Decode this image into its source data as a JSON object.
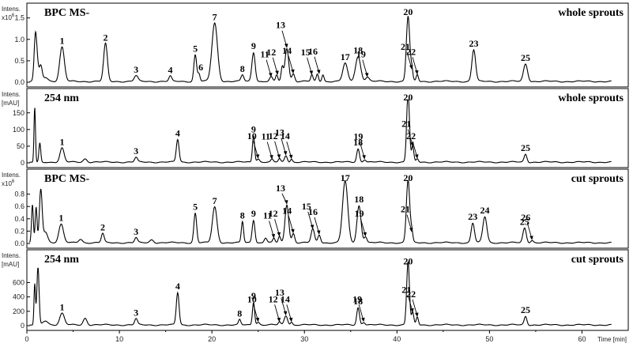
{
  "chart_data": {
    "type": "line",
    "x_axis": {
      "label": "Time [min]",
      "range": [
        0,
        65
      ],
      "ticks": [
        "0",
        "10",
        "20",
        "30",
        "40",
        "50",
        "60"
      ]
    },
    "panels": [
      {
        "id": "p1",
        "y_unit_top": "Intens.",
        "y_unit_bottom": "x10",
        "y_unit_exp": "6",
        "left_title": "BPC MS-",
        "right_title": "whole sprouts",
        "ylim": [
          0,
          1.55
        ],
        "yticks": [
          "0.0",
          "0.5",
          "1.0",
          "1.5"
        ],
        "peaks": [
          {
            "t": 0.9,
            "h": 0.45,
            "w": 0.12
          },
          {
            "t": 1.0,
            "h": 0.78,
            "w": 0.18
          },
          {
            "t": 1.5,
            "h": 0.35,
            "w": 0.15
          },
          {
            "t": 2.0,
            "h": 0.1,
            "w": 0.3
          },
          {
            "t": 3.8,
            "h": 0.8,
            "w": 0.25
          },
          {
            "t": 8.5,
            "h": 0.88,
            "w": 0.2
          },
          {
            "t": 11.8,
            "h": 0.13,
            "w": 0.2
          },
          {
            "t": 15.5,
            "h": 0.12,
            "w": 0.15
          },
          {
            "t": 18.2,
            "h": 0.62,
            "w": 0.15
          },
          {
            "t": 18.6,
            "h": 0.18,
            "w": 0.12
          },
          {
            "t": 20.3,
            "h": 1.36,
            "w": 0.3
          },
          {
            "t": 23.3,
            "h": 0.15,
            "w": 0.15
          },
          {
            "t": 24.5,
            "h": 0.68,
            "w": 0.18
          },
          {
            "t": 26.4,
            "h": 0.1,
            "w": 0.15
          },
          {
            "t": 27.0,
            "h": 0.15,
            "w": 0.12
          },
          {
            "t": 27.6,
            "h": 0.32,
            "w": 0.12
          },
          {
            "t": 28.1,
            "h": 0.78,
            "w": 0.2
          },
          {
            "t": 28.8,
            "h": 0.18,
            "w": 0.15
          },
          {
            "t": 30.8,
            "h": 0.15,
            "w": 0.12
          },
          {
            "t": 31.4,
            "h": 0.17,
            "w": 0.12
          },
          {
            "t": 32.0,
            "h": 0.16,
            "w": 0.12
          },
          {
            "t": 34.4,
            "h": 0.42,
            "w": 0.25
          },
          {
            "t": 35.8,
            "h": 0.58,
            "w": 0.28
          },
          {
            "t": 36.8,
            "h": 0.1,
            "w": 0.2
          },
          {
            "t": 41.2,
            "h": 1.52,
            "w": 0.18
          },
          {
            "t": 41.6,
            "h": 0.28,
            "w": 0.12
          },
          {
            "t": 42.2,
            "h": 0.16,
            "w": 0.12
          },
          {
            "t": 48.3,
            "h": 0.74,
            "w": 0.2
          },
          {
            "t": 53.9,
            "h": 0.41,
            "w": 0.22
          }
        ],
        "labels": [
          {
            "n": "1",
            "t": 3.8,
            "h": 0.8
          },
          {
            "n": "2",
            "t": 8.5,
            "h": 0.88
          },
          {
            "n": "3",
            "t": 11.8,
            "h": 0.13
          },
          {
            "n": "4",
            "t": 15.5,
            "h": 0.12
          },
          {
            "n": "5",
            "t": 18.2,
            "h": 0.62
          },
          {
            "n": "6",
            "t": 18.8,
            "h": 0.18
          },
          {
            "n": "7",
            "t": 20.3,
            "h": 1.36
          },
          {
            "n": "8",
            "t": 23.3,
            "h": 0.15
          },
          {
            "n": "9",
            "t": 24.5,
            "h": 0.68
          },
          {
            "n": "11",
            "t": 26.4,
            "h": 0.1,
            "arrow": true
          },
          {
            "n": "12",
            "t": 27.1,
            "h": 0.15,
            "arrow": true
          },
          {
            "n": "13",
            "t": 28.1,
            "h": 0.78,
            "arrow": true
          },
          {
            "n": "14",
            "t": 28.8,
            "h": 0.18,
            "arrow": true
          },
          {
            "n": "15",
            "t": 30.8,
            "h": 0.15,
            "arrow": true
          },
          {
            "n": "16",
            "t": 31.6,
            "h": 0.17,
            "arrow": true
          },
          {
            "n": "17",
            "t": 34.4,
            "h": 0.42
          },
          {
            "n": "18",
            "t": 35.8,
            "h": 0.58
          },
          {
            "n": "19",
            "t": 36.8,
            "h": 0.1,
            "arrow": true
          },
          {
            "n": "20",
            "t": 41.2,
            "h": 1.52
          },
          {
            "n": "21",
            "t": 41.6,
            "h": 0.28,
            "arrow": true
          },
          {
            "n": "22",
            "t": 42.2,
            "h": 0.16,
            "arrow": true
          },
          {
            "n": "23",
            "t": 48.3,
            "h": 0.74
          },
          {
            "n": "25",
            "t": 53.9,
            "h": 0.41
          }
        ]
      },
      {
        "id": "p2",
        "y_unit_top": "Intens.",
        "y_unit_bottom": "[mAU]",
        "left_title": "254 nm",
        "right_title": "whole sprouts",
        "ylim": [
          0,
          185
        ],
        "yticks": [
          "0",
          "50",
          "100",
          "150"
        ],
        "peaks": [
          {
            "t": 0.85,
            "h": 165,
            "w": 0.08
          },
          {
            "t": 1.4,
            "h": 58,
            "w": 0.1
          },
          {
            "t": 3.8,
            "h": 42,
            "w": 0.22
          },
          {
            "t": 6.3,
            "h": 10,
            "w": 0.2
          },
          {
            "t": 11.8,
            "h": 14,
            "w": 0.15
          },
          {
            "t": 16.3,
            "h": 68,
            "w": 0.15
          },
          {
            "t": 24.5,
            "h": 80,
            "w": 0.12
          },
          {
            "t": 25.0,
            "h": 10,
            "w": 0.15
          },
          {
            "t": 26.5,
            "h": 8,
            "w": 0.12
          },
          {
            "t": 27.3,
            "h": 10,
            "w": 0.12
          },
          {
            "t": 28.0,
            "h": 20,
            "w": 0.15
          },
          {
            "t": 28.6,
            "h": 9,
            "w": 0.12
          },
          {
            "t": 35.8,
            "h": 40,
            "w": 0.15
          },
          {
            "t": 36.5,
            "h": 8,
            "w": 0.15
          },
          {
            "t": 41.2,
            "h": 210,
            "w": 0.15
          },
          {
            "t": 41.7,
            "h": 46,
            "w": 0.12
          },
          {
            "t": 42.2,
            "h": 10,
            "w": 0.12
          },
          {
            "t": 53.9,
            "h": 24,
            "w": 0.15
          }
        ],
        "labels": [
          {
            "n": "1",
            "t": 3.8,
            "h": 42
          },
          {
            "n": "3",
            "t": 11.8,
            "h": 14
          },
          {
            "n": "4",
            "t": 16.3,
            "h": 68
          },
          {
            "n": "9",
            "t": 24.5,
            "h": 80
          },
          {
            "n": "10",
            "t": 25.0,
            "h": 10,
            "arrow": true
          },
          {
            "n": "11",
            "t": 26.5,
            "h": 8,
            "arrow": true
          },
          {
            "n": "12",
            "t": 27.3,
            "h": 10,
            "arrow": true
          },
          {
            "n": "13",
            "t": 28.0,
            "h": 20,
            "arrow": true
          },
          {
            "n": "14",
            "t": 28.6,
            "h": 9,
            "arrow": true
          },
          {
            "n": "18",
            "t": 35.8,
            "h": 40
          },
          {
            "n": "19",
            "t": 36.5,
            "h": 8,
            "arrow": true
          },
          {
            "n": "20",
            "t": 41.2,
            "h": 178
          },
          {
            "n": "21",
            "t": 41.7,
            "h": 46,
            "arrow": true
          },
          {
            "n": "22",
            "t": 42.2,
            "h": 10,
            "arrow": true
          },
          {
            "n": "25",
            "t": 53.9,
            "h": 24
          }
        ]
      },
      {
        "id": "p3",
        "y_unit_top": "Intens.",
        "y_unit_bottom": "x10",
        "y_unit_exp": "6",
        "left_title": "BPC MS-",
        "right_title": "cut sprouts",
        "ylim": [
          0,
          1.0
        ],
        "yticks": [
          "0.0",
          "0.2",
          "0.4",
          "0.6",
          "0.8"
        ],
        "peaks": [
          {
            "t": 0.6,
            "h": 0.62,
            "w": 0.1
          },
          {
            "t": 1.0,
            "h": 0.58,
            "w": 0.1
          },
          {
            "t": 1.5,
            "h": 0.85,
            "w": 0.15
          },
          {
            "t": 2.0,
            "h": 0.18,
            "w": 0.25
          },
          {
            "t": 3.7,
            "h": 0.3,
            "w": 0.25
          },
          {
            "t": 5.8,
            "h": 0.06,
            "w": 0.2
          },
          {
            "t": 8.2,
            "h": 0.15,
            "w": 0.15
          },
          {
            "t": 11.8,
            "h": 0.08,
            "w": 0.15
          },
          {
            "t": 13.5,
            "h": 0.05,
            "w": 0.2
          },
          {
            "t": 18.2,
            "h": 0.48,
            "w": 0.15
          },
          {
            "t": 20.3,
            "h": 0.58,
            "w": 0.25
          },
          {
            "t": 23.3,
            "h": 0.34,
            "w": 0.12
          },
          {
            "t": 24.5,
            "h": 0.37,
            "w": 0.15
          },
          {
            "t": 25.8,
            "h": 0.08,
            "w": 0.15
          },
          {
            "t": 26.7,
            "h": 0.07,
            "w": 0.12
          },
          {
            "t": 27.3,
            "h": 0.1,
            "w": 0.12
          },
          {
            "t": 28.1,
            "h": 0.62,
            "w": 0.2
          },
          {
            "t": 28.8,
            "h": 0.15,
            "w": 0.15
          },
          {
            "t": 30.9,
            "h": 0.22,
            "w": 0.18
          },
          {
            "t": 31.6,
            "h": 0.13,
            "w": 0.15
          },
          {
            "t": 34.4,
            "h": 1.0,
            "w": 0.28
          },
          {
            "t": 35.9,
            "h": 0.6,
            "w": 0.22
          },
          {
            "t": 36.6,
            "h": 0.1,
            "w": 0.15
          },
          {
            "t": 41.2,
            "h": 1.02,
            "w": 0.18
          },
          {
            "t": 41.6,
            "h": 0.17,
            "w": 0.12
          },
          {
            "t": 48.2,
            "h": 0.32,
            "w": 0.18
          },
          {
            "t": 49.5,
            "h": 0.42,
            "w": 0.22
          },
          {
            "t": 53.8,
            "h": 0.24,
            "w": 0.18
          },
          {
            "t": 54.6,
            "h": 0.04,
            "w": 0.15
          }
        ],
        "labels": [
          {
            "n": "1",
            "t": 3.7,
            "h": 0.3
          },
          {
            "n": "2",
            "t": 8.2,
            "h": 0.15
          },
          {
            "n": "3",
            "t": 11.8,
            "h": 0.08
          },
          {
            "n": "5",
            "t": 18.2,
            "h": 0.48
          },
          {
            "n": "7",
            "t": 20.3,
            "h": 0.58
          },
          {
            "n": "8",
            "t": 23.3,
            "h": 0.34
          },
          {
            "n": "9",
            "t": 24.5,
            "h": 0.37
          },
          {
            "n": "11",
            "t": 26.7,
            "h": 0.07,
            "arrow": true
          },
          {
            "n": "12",
            "t": 27.3,
            "h": 0.1,
            "arrow": true
          },
          {
            "n": "13",
            "t": 28.1,
            "h": 0.62,
            "arrow": true
          },
          {
            "n": "14",
            "t": 28.8,
            "h": 0.15,
            "arrow": true
          },
          {
            "n": "15",
            "t": 30.9,
            "h": 0.22,
            "arrow": true
          },
          {
            "n": "16",
            "t": 31.6,
            "h": 0.13,
            "arrow": true
          },
          {
            "n": "17",
            "t": 34.4,
            "h": 1.0
          },
          {
            "n": "18",
            "t": 35.9,
            "h": 0.6
          },
          {
            "n": "19",
            "t": 36.6,
            "h": 0.1,
            "arrow": true
          },
          {
            "n": "20",
            "t": 41.2,
            "h": 0.95
          },
          {
            "n": "21",
            "t": 41.6,
            "h": 0.17,
            "arrow": true
          },
          {
            "n": "23",
            "t": 48.2,
            "h": 0.32
          },
          {
            "n": "24",
            "t": 49.5,
            "h": 0.42
          },
          {
            "n": "25",
            "t": 53.8,
            "h": 0.24
          },
          {
            "n": "26",
            "t": 54.6,
            "h": 0.04,
            "arrow": true
          }
        ]
      },
      {
        "id": "p4",
        "y_unit_top": "Intens.",
        "y_unit_bottom": "[mAU]",
        "left_title": "254 nm",
        "right_title": "cut sprouts",
        "ylim": [
          0,
          880
        ],
        "yticks": [
          "0",
          "200",
          "400",
          "600"
        ],
        "peaks": [
          {
            "t": 0.85,
            "h": 570,
            "w": 0.08
          },
          {
            "t": 1.2,
            "h": 800,
            "w": 0.12
          },
          {
            "t": 2.0,
            "h": 60,
            "w": 0.3
          },
          {
            "t": 3.8,
            "h": 160,
            "w": 0.25
          },
          {
            "t": 6.3,
            "h": 95,
            "w": 0.2
          },
          {
            "t": 11.8,
            "h": 85,
            "w": 0.15
          },
          {
            "t": 16.3,
            "h": 450,
            "w": 0.15
          },
          {
            "t": 23.0,
            "h": 70,
            "w": 0.12
          },
          {
            "t": 24.5,
            "h": 320,
            "w": 0.12
          },
          {
            "t": 25.0,
            "h": 40,
            "w": 0.15
          },
          {
            "t": 27.3,
            "h": 40,
            "w": 0.12
          },
          {
            "t": 28.0,
            "h": 130,
            "w": 0.18
          },
          {
            "t": 28.6,
            "h": 40,
            "w": 0.12
          },
          {
            "t": 35.8,
            "h": 240,
            "w": 0.15
          },
          {
            "t": 36.4,
            "h": 40,
            "w": 0.15
          },
          {
            "t": 41.2,
            "h": 880,
            "w": 0.15
          },
          {
            "t": 41.7,
            "h": 170,
            "w": 0.12
          },
          {
            "t": 42.2,
            "h": 110,
            "w": 0.12
          },
          {
            "t": 53.9,
            "h": 120,
            "w": 0.15
          }
        ],
        "labels": [
          {
            "n": "1",
            "t": 3.8,
            "h": 160
          },
          {
            "n": "3",
            "t": 11.8,
            "h": 85
          },
          {
            "n": "4",
            "t": 16.3,
            "h": 450
          },
          {
            "n": "8",
            "t": 23.0,
            "h": 70
          },
          {
            "n": "9",
            "t": 24.5,
            "h": 320
          },
          {
            "n": "10",
            "t": 25.0,
            "h": 40,
            "arrow": true
          },
          {
            "n": "12",
            "t": 27.3,
            "h": 40,
            "arrow": true
          },
          {
            "n": "13",
            "t": 28.0,
            "h": 130,
            "arrow": true
          },
          {
            "n": "14",
            "t": 28.6,
            "h": 40,
            "arrow": true
          },
          {
            "n": "18",
            "t": 35.8,
            "h": 240
          },
          {
            "n": "19",
            "t": 36.4,
            "h": 40,
            "arrow": true
          },
          {
            "n": "20",
            "t": 41.2,
            "h": 800
          },
          {
            "n": "21",
            "t": 41.7,
            "h": 170,
            "arrow": true
          },
          {
            "n": "22",
            "t": 42.2,
            "h": 110,
            "arrow": true
          },
          {
            "n": "25",
            "t": 53.9,
            "h": 120
          }
        ]
      }
    ]
  }
}
